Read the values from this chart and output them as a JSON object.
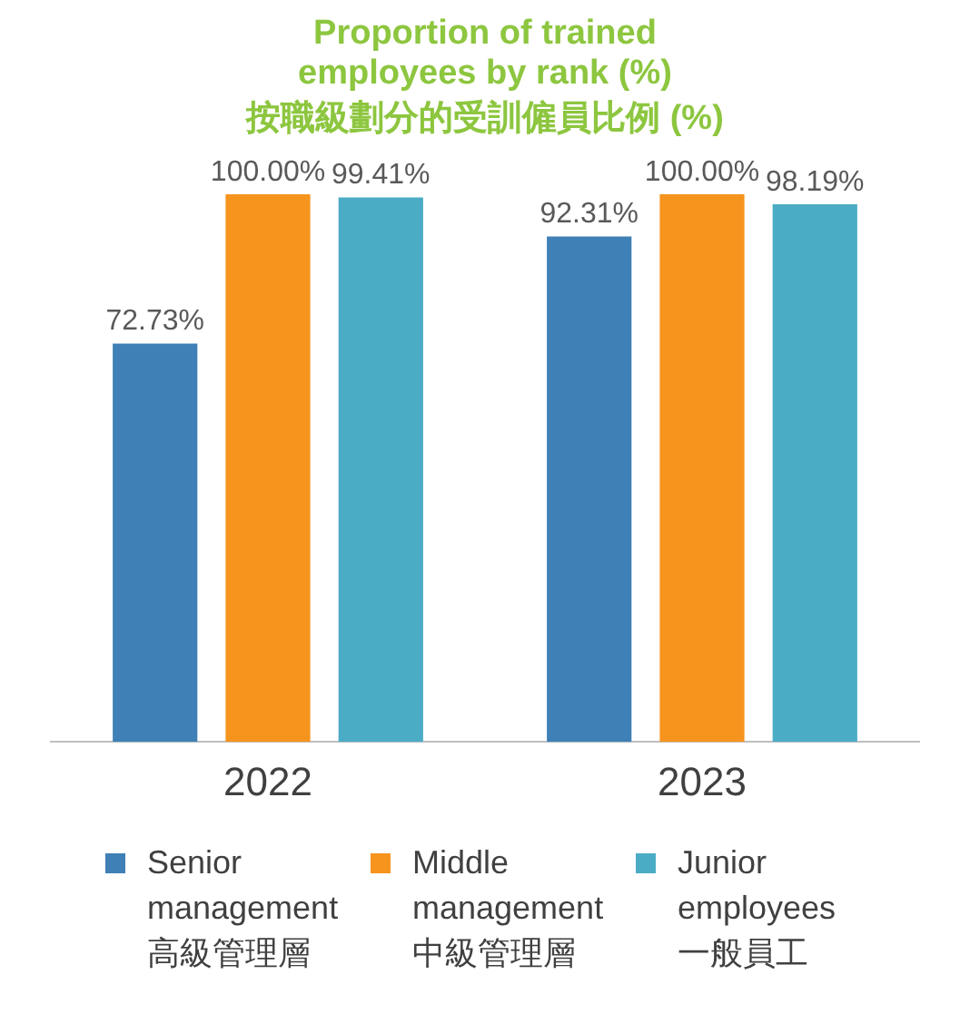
{
  "chart_data": {
    "type": "bar",
    "title": "Proportion of trained\nemployees by rank (%)",
    "subtitle": "按職級劃分的受訓僱員比例 (%)",
    "categories": [
      "2022",
      "2023"
    ],
    "series": [
      {
        "name": "Senior\nmanagement\n高級管理層",
        "color": "#3f80b6",
        "values": [
          72.73,
          92.31
        ],
        "value_labels": [
          "72.73%",
          "92.31%"
        ]
      },
      {
        "name": "Middle\nmanagement\n中級管理層",
        "color": "#f7941d",
        "values": [
          100,
          100
        ],
        "value_labels": [
          "100.00%",
          "100.00%"
        ]
      },
      {
        "name": "Junior\nemployees\n一般員工",
        "color": "#4bacc6",
        "values": [
          99.41,
          98.19
        ],
        "value_labels": [
          "99.41%",
          "98.19%"
        ]
      }
    ],
    "grid": false,
    "legend": "bottom"
  }
}
